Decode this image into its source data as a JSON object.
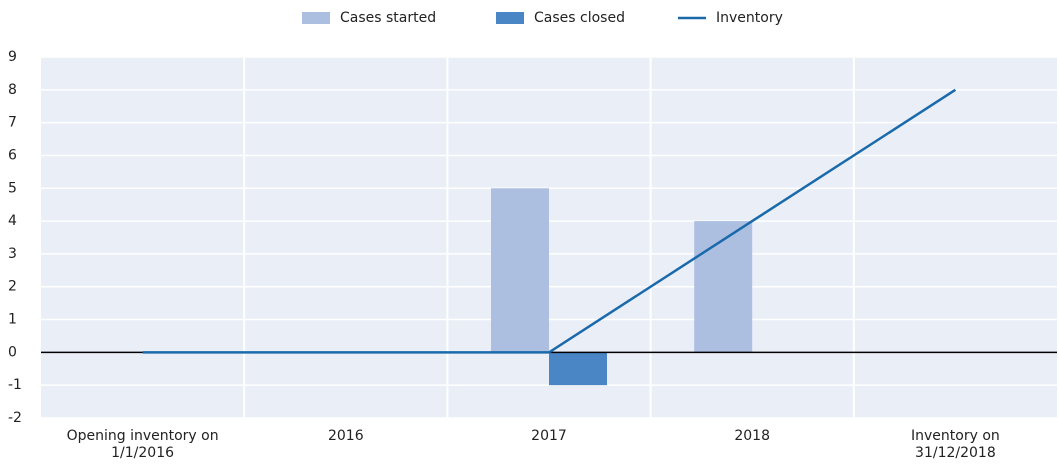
{
  "chart_data": {
    "type": "bar-line",
    "categories": [
      "Opening inventory on\n1/1/2016",
      "2016",
      "2017",
      "2018",
      "Inventory on\n31/12/2018"
    ],
    "series": [
      {
        "name": "Cases started",
        "type": "bar",
        "color": "#adbfe1",
        "values": [
          null,
          0,
          5,
          4,
          null
        ]
      },
      {
        "name": "Cases closed",
        "type": "bar",
        "color": "#4a86c6",
        "values": [
          null,
          0,
          -1,
          0,
          null
        ]
      },
      {
        "name": "Inventory",
        "type": "line",
        "color": "#1a6aab",
        "values": [
          0,
          0,
          0,
          4,
          8
        ]
      }
    ],
    "ylim": [
      -2,
      9
    ],
    "yticks": [
      -2,
      -1,
      0,
      1,
      2,
      3,
      4,
      5,
      6,
      7,
      8,
      9
    ],
    "grid": true,
    "legend": "top"
  }
}
